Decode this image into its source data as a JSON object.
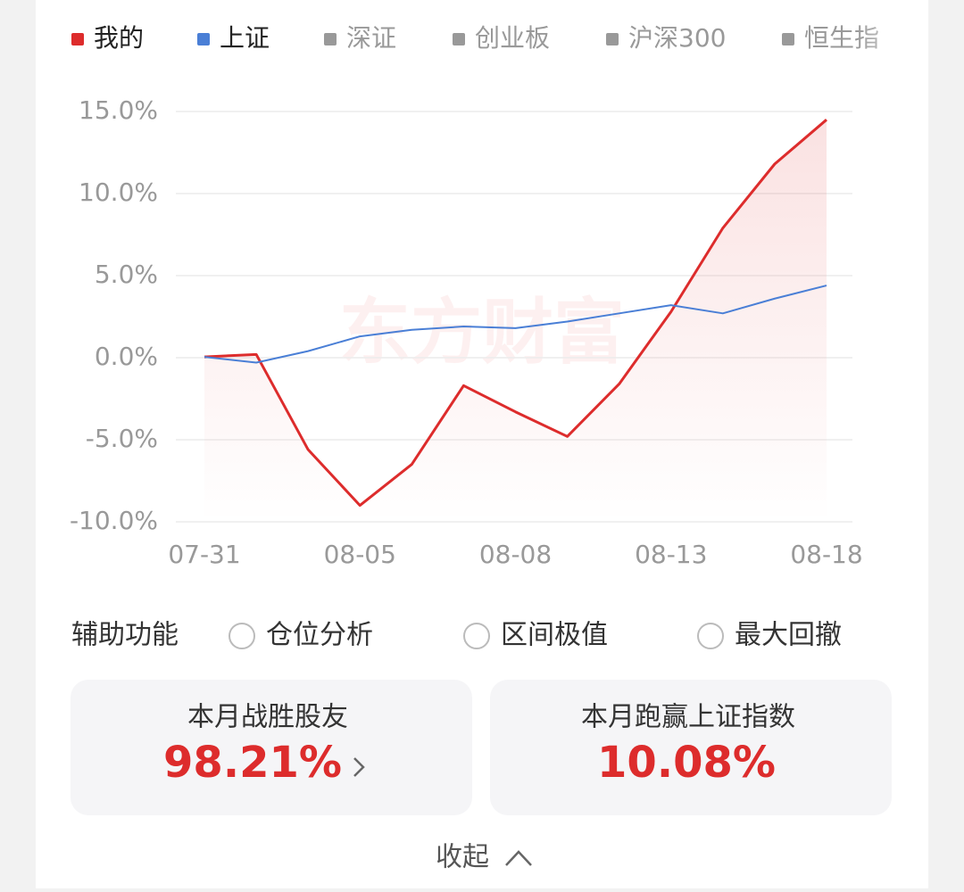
{
  "chart_data": {
    "type": "line",
    "categories": [
      "07-31",
      null,
      null,
      "08-05",
      null,
      null,
      "08-08",
      null,
      null,
      "08-13",
      null,
      null,
      "08-18"
    ],
    "series": [
      {
        "name": "我的",
        "color": "#dd2c2c",
        "values": [
          0.05,
          0.2,
          -5.6,
          -9.0,
          -6.5,
          -1.7,
          -3.3,
          -4.8,
          -1.6,
          2.8,
          7.9,
          11.8,
          14.5
        ]
      },
      {
        "name": "上证",
        "color": "#4a7fd6",
        "values": [
          0.05,
          -0.3,
          0.4,
          1.3,
          1.7,
          1.9,
          1.8,
          2.2,
          2.7,
          3.2,
          2.7,
          3.6,
          4.4
        ]
      }
    ],
    "legend_inactive": [
      "深证",
      "创业板",
      "沪深300",
      "恒生指"
    ],
    "inactive_color": "#999999",
    "ylim": [
      -10,
      15
    ],
    "yticks": [
      {
        "value": 15,
        "label": "15.0%"
      },
      {
        "value": 10,
        "label": "10.0%"
      },
      {
        "value": 5,
        "label": "5.0%"
      },
      {
        "value": 0,
        "label": "0.0%"
      },
      {
        "value": -5,
        "label": "-5.0%"
      },
      {
        "value": -10,
        "label": "-10.0%"
      }
    ],
    "grid": true,
    "watermark": "东方财富"
  },
  "tools": {
    "label": "辅助功能",
    "options": [
      "仓位分析",
      "区间极值",
      "最大回撤"
    ]
  },
  "cards": [
    {
      "title": "本月战胜股友",
      "value": "98.21%"
    },
    {
      "title": "本月跑赢上证指数",
      "value": "10.08%"
    }
  ],
  "collapse": "收起"
}
